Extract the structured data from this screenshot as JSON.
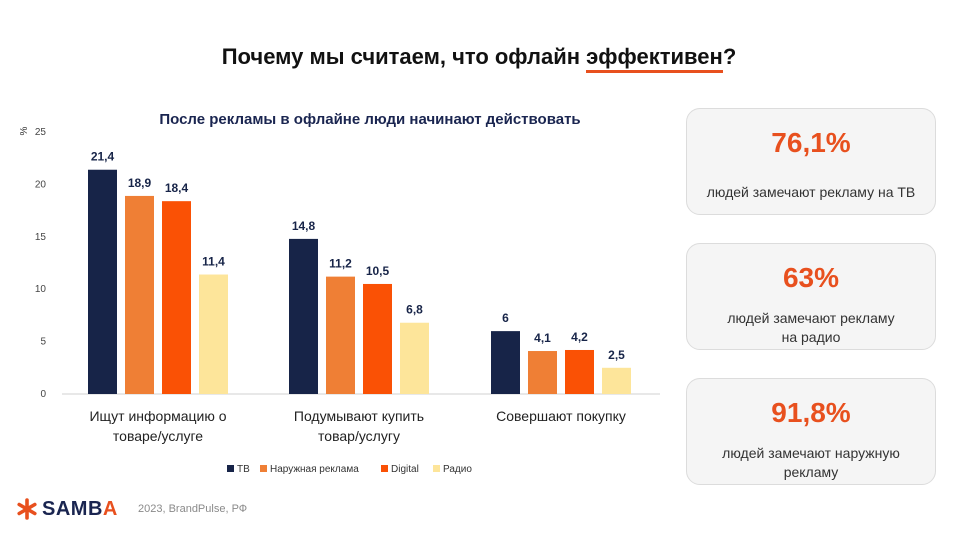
{
  "page_title": {
    "before": "Почему мы считаем, что офлайн ",
    "highlight": "эффективен",
    "after": "?"
  },
  "chart_data": {
    "type": "bar",
    "title": "После рекламы в офлайне люди начинают действовать",
    "ylabel": "%",
    "ylim": [
      0,
      25
    ],
    "yticks": [
      "0",
      "5",
      "10",
      "15",
      "20",
      "25"
    ],
    "grid": false,
    "legend_position": "bottom",
    "categories": [
      [
        "Ищут информацию о",
        "товаре/услуге"
      ],
      [
        "Подумывают купить",
        "товар/услугу"
      ],
      [
        "Совершают покупку"
      ]
    ],
    "series": [
      {
        "name": "ТВ",
        "color": "#172448",
        "values": [
          21.4,
          14.8,
          6
        ],
        "labels": [
          "21,4",
          "14,8",
          "6"
        ]
      },
      {
        "name": "Наружная реклама",
        "color": "#ef7f35",
        "values": [
          18.9,
          11.2,
          4.1
        ],
        "labels": [
          "18,9",
          "11,2",
          "4,1"
        ]
      },
      {
        "name": "Digital",
        "color": "#fa5105",
        "values": [
          18.4,
          10.5,
          4.2
        ],
        "labels": [
          "18,4",
          "10,5",
          "4,2"
        ]
      },
      {
        "name": "Радио",
        "color": "#fde59a",
        "values": [
          11.4,
          6.8,
          2.5
        ],
        "labels": [
          "11,4",
          "6,8",
          "2,5"
        ]
      }
    ]
  },
  "stats": [
    {
      "value": "76,1%",
      "desc": [
        "людей замечают рекламу на ТВ"
      ]
    },
    {
      "value": "63%",
      "desc": [
        "людей замечают рекламу",
        "на радио"
      ]
    },
    {
      "value": "91,8%",
      "desc": [
        "людей замечают наружную",
        "рекламу"
      ]
    }
  ],
  "footer": {
    "logo_main": "SAMB",
    "logo_accent": "A",
    "source": "2023, BrandPulse, РФ",
    "logo_icon": "asterisk-star-icon",
    "accent_color": "#e8501e"
  }
}
